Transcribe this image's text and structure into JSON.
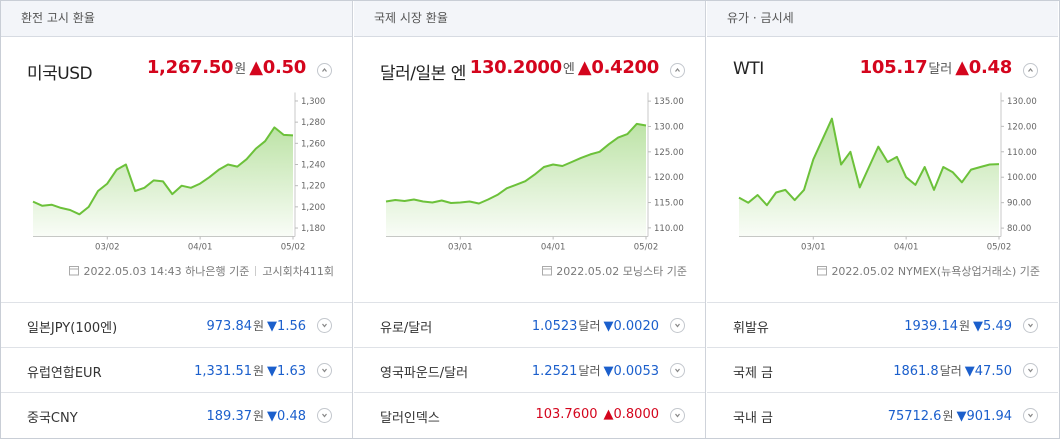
{
  "panels": [
    {
      "tab": "환전 고시 환율",
      "title": "미국USD",
      "price": "1,267.50",
      "unit": "원",
      "change": "▲0.50",
      "color": "#d4051d",
      "date": "2022.05.03 14:43 하나은행 기준",
      "extra": "고시회차411회",
      "rows": [
        {
          "name": "일본JPY(100엔)",
          "value": "973.84",
          "unit": "원",
          "change": "▼1.56",
          "color": "#1b5fcc"
        },
        {
          "name": "유럽연합EUR",
          "value": "1,331.51",
          "unit": "원",
          "change": "▼1.63",
          "color": "#1b5fcc"
        },
        {
          "name": "중국CNY",
          "value": "189.37",
          "unit": "원",
          "change": "▼0.48",
          "color": "#1b5fcc"
        }
      ]
    },
    {
      "tab": "국제 시장 환율",
      "title": "달러/일본 엔",
      "price": "130.2000",
      "unit": "엔",
      "change": "▲0.4200",
      "color": "#d4051d",
      "date": "2022.05.02 모닝스타 기준",
      "rows": [
        {
          "name": "유로/달러",
          "value": "1.0523",
          "unit": "달러",
          "change": "▼0.0020",
          "color": "#1b5fcc"
        },
        {
          "name": "영국파운드/달러",
          "value": "1.2521",
          "unit": "달러",
          "change": "▼0.0053",
          "color": "#1b5fcc"
        },
        {
          "name": "달러인덱스",
          "value": "103.7600",
          "change": "▲0.8000",
          "color": "#d4051d"
        }
      ]
    },
    {
      "tab": "유가 · 금시세",
      "title": "WTI",
      "price": "105.17",
      "unit": "달러",
      "change": "▲0.48",
      "color": "#d4051d",
      "date": "2022.05.02 NYMEX(뉴욕상업거래소) 기준",
      "rows": [
        {
          "name": "휘발유",
          "value": "1939.14",
          "unit": "원",
          "change": "▼5.49",
          "color": "#1b5fcc"
        },
        {
          "name": "국제 금",
          "value": "1861.8",
          "unit": "달러",
          "change": "▼47.50",
          "color": "#1b5fcc"
        },
        {
          "name": "국내 금",
          "value": "75712.6",
          "unit": "원",
          "change": "▼901.94",
          "color": "#1b5fcc"
        }
      ]
    }
  ],
  "chart_data": [
    {
      "type": "line",
      "color": "#6cc13a",
      "categories": [
        null,
        null,
        null,
        null,
        null,
        null,
        null,
        null,
        "03/02",
        null,
        null,
        null,
        null,
        null,
        null,
        null,
        null,
        null,
        "04/01",
        null,
        null,
        null,
        null,
        null,
        null,
        null,
        null,
        null,
        "05/02"
      ],
      "values": [
        1205,
        1201,
        1202,
        1199,
        1197,
        1193,
        1200,
        1215,
        1222,
        1235,
        1240,
        1215,
        1218,
        1225,
        1224,
        1212,
        1220,
        1218,
        1222,
        1228,
        1235,
        1240,
        1238,
        1245,
        1255,
        1262,
        1275,
        1268,
        1267.5
      ],
      "ylim": [
        1172,
        1308
      ],
      "yticks": [
        {
          "value": 1300,
          "label": "1,300"
        },
        {
          "value": 1280,
          "label": "1,280"
        },
        {
          "value": 1260,
          "label": "1,260"
        },
        {
          "value": 1240,
          "label": "1,240"
        },
        {
          "value": 1220,
          "label": "1,220"
        },
        {
          "value": 1200,
          "label": "1,200"
        },
        {
          "value": 1180,
          "label": "1,180"
        }
      ]
    },
    {
      "type": "line",
      "color": "#6cc13a",
      "categories": [
        null,
        null,
        null,
        null,
        null,
        null,
        null,
        null,
        "03/01",
        null,
        null,
        null,
        null,
        null,
        null,
        null,
        null,
        null,
        "04/01",
        null,
        null,
        null,
        null,
        null,
        null,
        null,
        null,
        null,
        "05/02"
      ],
      "values": [
        115.2,
        115.5,
        115.3,
        115.6,
        115.2,
        115.0,
        115.4,
        114.9,
        115.0,
        115.2,
        114.8,
        115.6,
        116.5,
        117.8,
        118.5,
        119.2,
        120.5,
        122.0,
        122.5,
        122.2,
        123.0,
        123.8,
        124.5,
        125.0,
        126.5,
        127.8,
        128.5,
        130.5,
        130.2
      ],
      "ylim": [
        108.3,
        136.7
      ],
      "yticks": [
        {
          "value": 135,
          "label": "135.00"
        },
        {
          "value": 130,
          "label": "130.00"
        },
        {
          "value": 125,
          "label": "125.00"
        },
        {
          "value": 120,
          "label": "120.00"
        },
        {
          "value": 115,
          "label": "115.00"
        },
        {
          "value": 110,
          "label": "110.00"
        }
      ]
    },
    {
      "type": "line",
      "color": "#6cc13a",
      "categories": [
        null,
        null,
        null,
        null,
        null,
        null,
        null,
        null,
        "03/01",
        null,
        null,
        null,
        null,
        null,
        null,
        null,
        null,
        null,
        "04/01",
        null,
        null,
        null,
        null,
        null,
        null,
        null,
        null,
        null,
        "05/02"
      ],
      "values": [
        92,
        90,
        93,
        89,
        94,
        95,
        91,
        95,
        107,
        115,
        123,
        105,
        110,
        96,
        104,
        112,
        106,
        108,
        100,
        97,
        104,
        95,
        104,
        102,
        98,
        103,
        104,
        105,
        105.17
      ],
      "ylim": [
        76.7,
        133.3
      ],
      "yticks": [
        {
          "value": 130,
          "label": "130.00"
        },
        {
          "value": 120,
          "label": "120.00"
        },
        {
          "value": 110,
          "label": "110.00"
        },
        {
          "value": 100,
          "label": "100.00"
        },
        {
          "value": 90,
          "label": "90.00"
        },
        {
          "value": 80,
          "label": "80.00"
        }
      ]
    }
  ]
}
